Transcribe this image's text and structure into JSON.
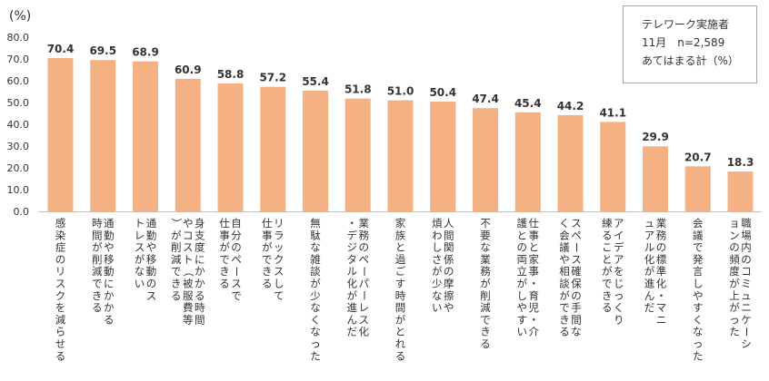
{
  "chart_data": {
    "type": "bar",
    "ylabel": "(%)",
    "ylim": [
      0,
      80
    ],
    "yticks": [
      "0.0",
      "10.0",
      "20.0",
      "30.0",
      "40.0",
      "50.0",
      "60.0",
      "70.0",
      "80.0"
    ],
    "grid": false,
    "bar_color": "#F4B183",
    "categories": [
      "感染症のリスクを減らせる",
      "通勤や移動にかかる時間が削減できる",
      "通勤や移動のストレスがない",
      "身支度にかかる時間やコスト（被服費等）が削減できる",
      "自分のペースで仕事ができる",
      "リラックスして仕事ができる",
      "無駄な雑談が少なくなった",
      "業務のペーパーレス化・デジタル化が進んだ",
      "家族と過ごす時間がとれる",
      "人間関係の摩擦や煩わしさが少ない",
      "不要な業務が削減できる",
      "仕事と家事・育児・介護との両立がしやすい",
      "スペース確保の手間なく会議や相談ができる",
      "アイデアをじっくり練ることができる",
      "業務の標準化・マニュアル化が進んだ",
      "会議で発言しやすくなった",
      "職場内のコミュニケーションの頻度が上がった"
    ],
    "values": [
      70.4,
      69.5,
      68.9,
      60.9,
      58.8,
      57.2,
      55.4,
      51.8,
      51.0,
      50.4,
      47.4,
      45.4,
      44.2,
      41.1,
      29.9,
      20.7,
      18.3
    ],
    "value_labels": [
      "70.4",
      "69.5",
      "68.9",
      "60.9",
      "58.8",
      "57.2",
      "55.4",
      "51.8",
      "51.0",
      "50.4",
      "47.4",
      "45.4",
      "44.2",
      "41.1",
      "29.9",
      "20.7",
      "18.3"
    ]
  },
  "legend": {
    "line1": "テレワーク実施者",
    "line2": "11月　n=2,589",
    "line3": "あてはまる計（%）"
  }
}
